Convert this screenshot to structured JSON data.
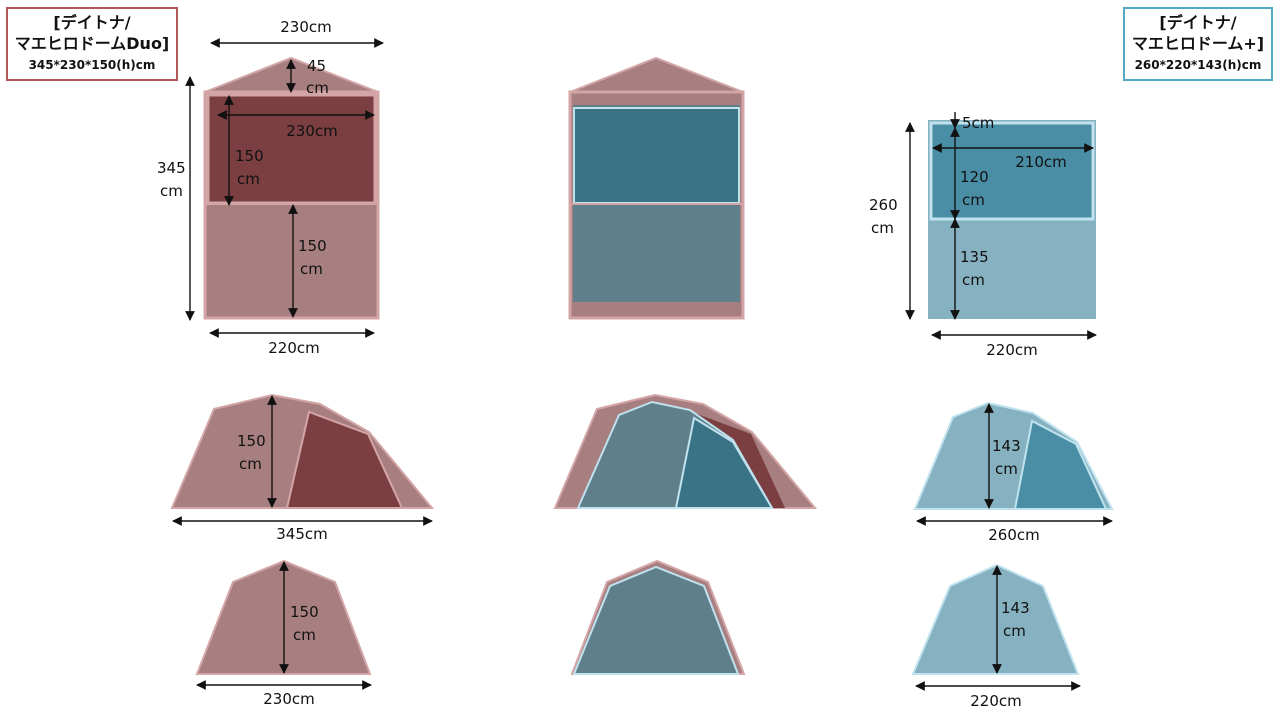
{
  "colors": {
    "duo_fill": "#a87f80",
    "duo_inner": "#7b3f42",
    "duo_edge": "#d3a5a6",
    "plus_fill": "#86b1c0",
    "plus_inner": "#4a8ea6",
    "plus_edge": "#bfe2ee",
    "overlay_fill": "#5f7f8b",
    "overlay_inner": "#3a7286",
    "duo_border": "#b25656",
    "plus_border": "#4fa8c0"
  },
  "legend_duo": {
    "line1": "[デイトナ/",
    "line2": "マエヒロドームDuo]",
    "dims": "345*230*150(h)cm"
  },
  "legend_plus": {
    "line1": "[デイトナ/",
    "line2": "マエヒロドーム+]",
    "dims": "260*220*143(h)cm"
  },
  "duo_top": {
    "width_top": "230cm",
    "peak_1": "45",
    "peak_2": "cm",
    "inner_width": "230cm",
    "inner_h_1": "150",
    "inner_h_2": "cm",
    "front_h_1": "150",
    "front_h_2": "cm",
    "length_1": "345",
    "length_2": "cm",
    "width_bottom": "220cm"
  },
  "plus_top": {
    "gap": "5cm",
    "inner_width": "210cm",
    "inner_h_1": "120",
    "inner_h_2": "cm",
    "front_h_1": "135",
    "front_h_2": "cm",
    "length_1": "260",
    "length_2": "cm",
    "width_bottom": "220cm"
  },
  "duo_side": {
    "h_1": "150",
    "h_2": "cm",
    "length": "345cm"
  },
  "plus_side": {
    "h_1": "143",
    "h_2": "cm",
    "length": "260cm"
  },
  "duo_front": {
    "h_1": "150",
    "h_2": "cm",
    "width": "230cm"
  },
  "plus_front": {
    "h_1": "143",
    "h_2": "cm",
    "width": "220cm"
  }
}
